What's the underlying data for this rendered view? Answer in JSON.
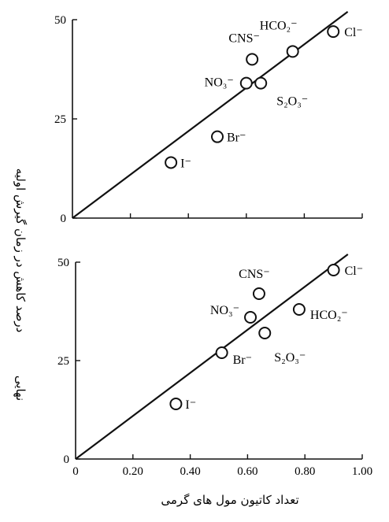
{
  "chart_data": [
    {
      "type": "scatter",
      "panel": "top",
      "ylabel": "درصد کاهش در زمان گیرش اولیه",
      "xlim": [
        0,
        1.0
      ],
      "ylim": [
        0,
        50
      ],
      "yticks": [
        0,
        25,
        50
      ],
      "ytick_labels": [
        "0",
        "25",
        "50"
      ],
      "points": [
        {
          "label": "I⁻",
          "x": 0.34,
          "y": 14
        },
        {
          "label": "Br⁻",
          "x": 0.5,
          "y": 20.5
        },
        {
          "label": "NO₃⁻",
          "x": 0.6,
          "y": 34
        },
        {
          "label": "CNS⁻",
          "x": 0.62,
          "y": 40
        },
        {
          "label": "S₂O₃⁻",
          "x": 0.65,
          "y": 34
        },
        {
          "label": "HCO₂⁻",
          "x": 0.76,
          "y": 42
        },
        {
          "label": "Cl⁻",
          "x": 0.9,
          "y": 47
        }
      ],
      "fit_line": {
        "x": [
          0,
          0.95
        ],
        "y": [
          0,
          52
        ]
      }
    },
    {
      "type": "scatter",
      "panel": "bottom",
      "ylabel": "نهایی",
      "xlabel": "تعداد کاتیون مول های گرمی",
      "xlim": [
        0,
        1.0
      ],
      "ylim": [
        0,
        50
      ],
      "xticks": [
        0,
        0.2,
        0.4,
        0.6,
        0.8,
        1.0
      ],
      "xtick_labels": [
        "0",
        "0.20",
        "0.40",
        "0.60",
        "0.80",
        "1.00"
      ],
      "yticks": [
        0,
        25,
        50
      ],
      "ytick_labels": [
        "0",
        "25",
        "50"
      ],
      "points": [
        {
          "label": "I⁻",
          "x": 0.35,
          "y": 14
        },
        {
          "label": "Br⁻",
          "x": 0.51,
          "y": 27
        },
        {
          "label": "NO₃⁻",
          "x": 0.61,
          "y": 36
        },
        {
          "label": "CNS⁻",
          "x": 0.64,
          "y": 42
        },
        {
          "label": "S₂O₃⁻",
          "x": 0.66,
          "y": 32
        },
        {
          "label": "HCO₂⁻",
          "x": 0.78,
          "y": 38
        },
        {
          "label": "Cl⁻",
          "x": 0.9,
          "y": 48
        }
      ],
      "fit_line": {
        "x": [
          0,
          0.95
        ],
        "y": [
          0,
          52
        ]
      }
    }
  ]
}
